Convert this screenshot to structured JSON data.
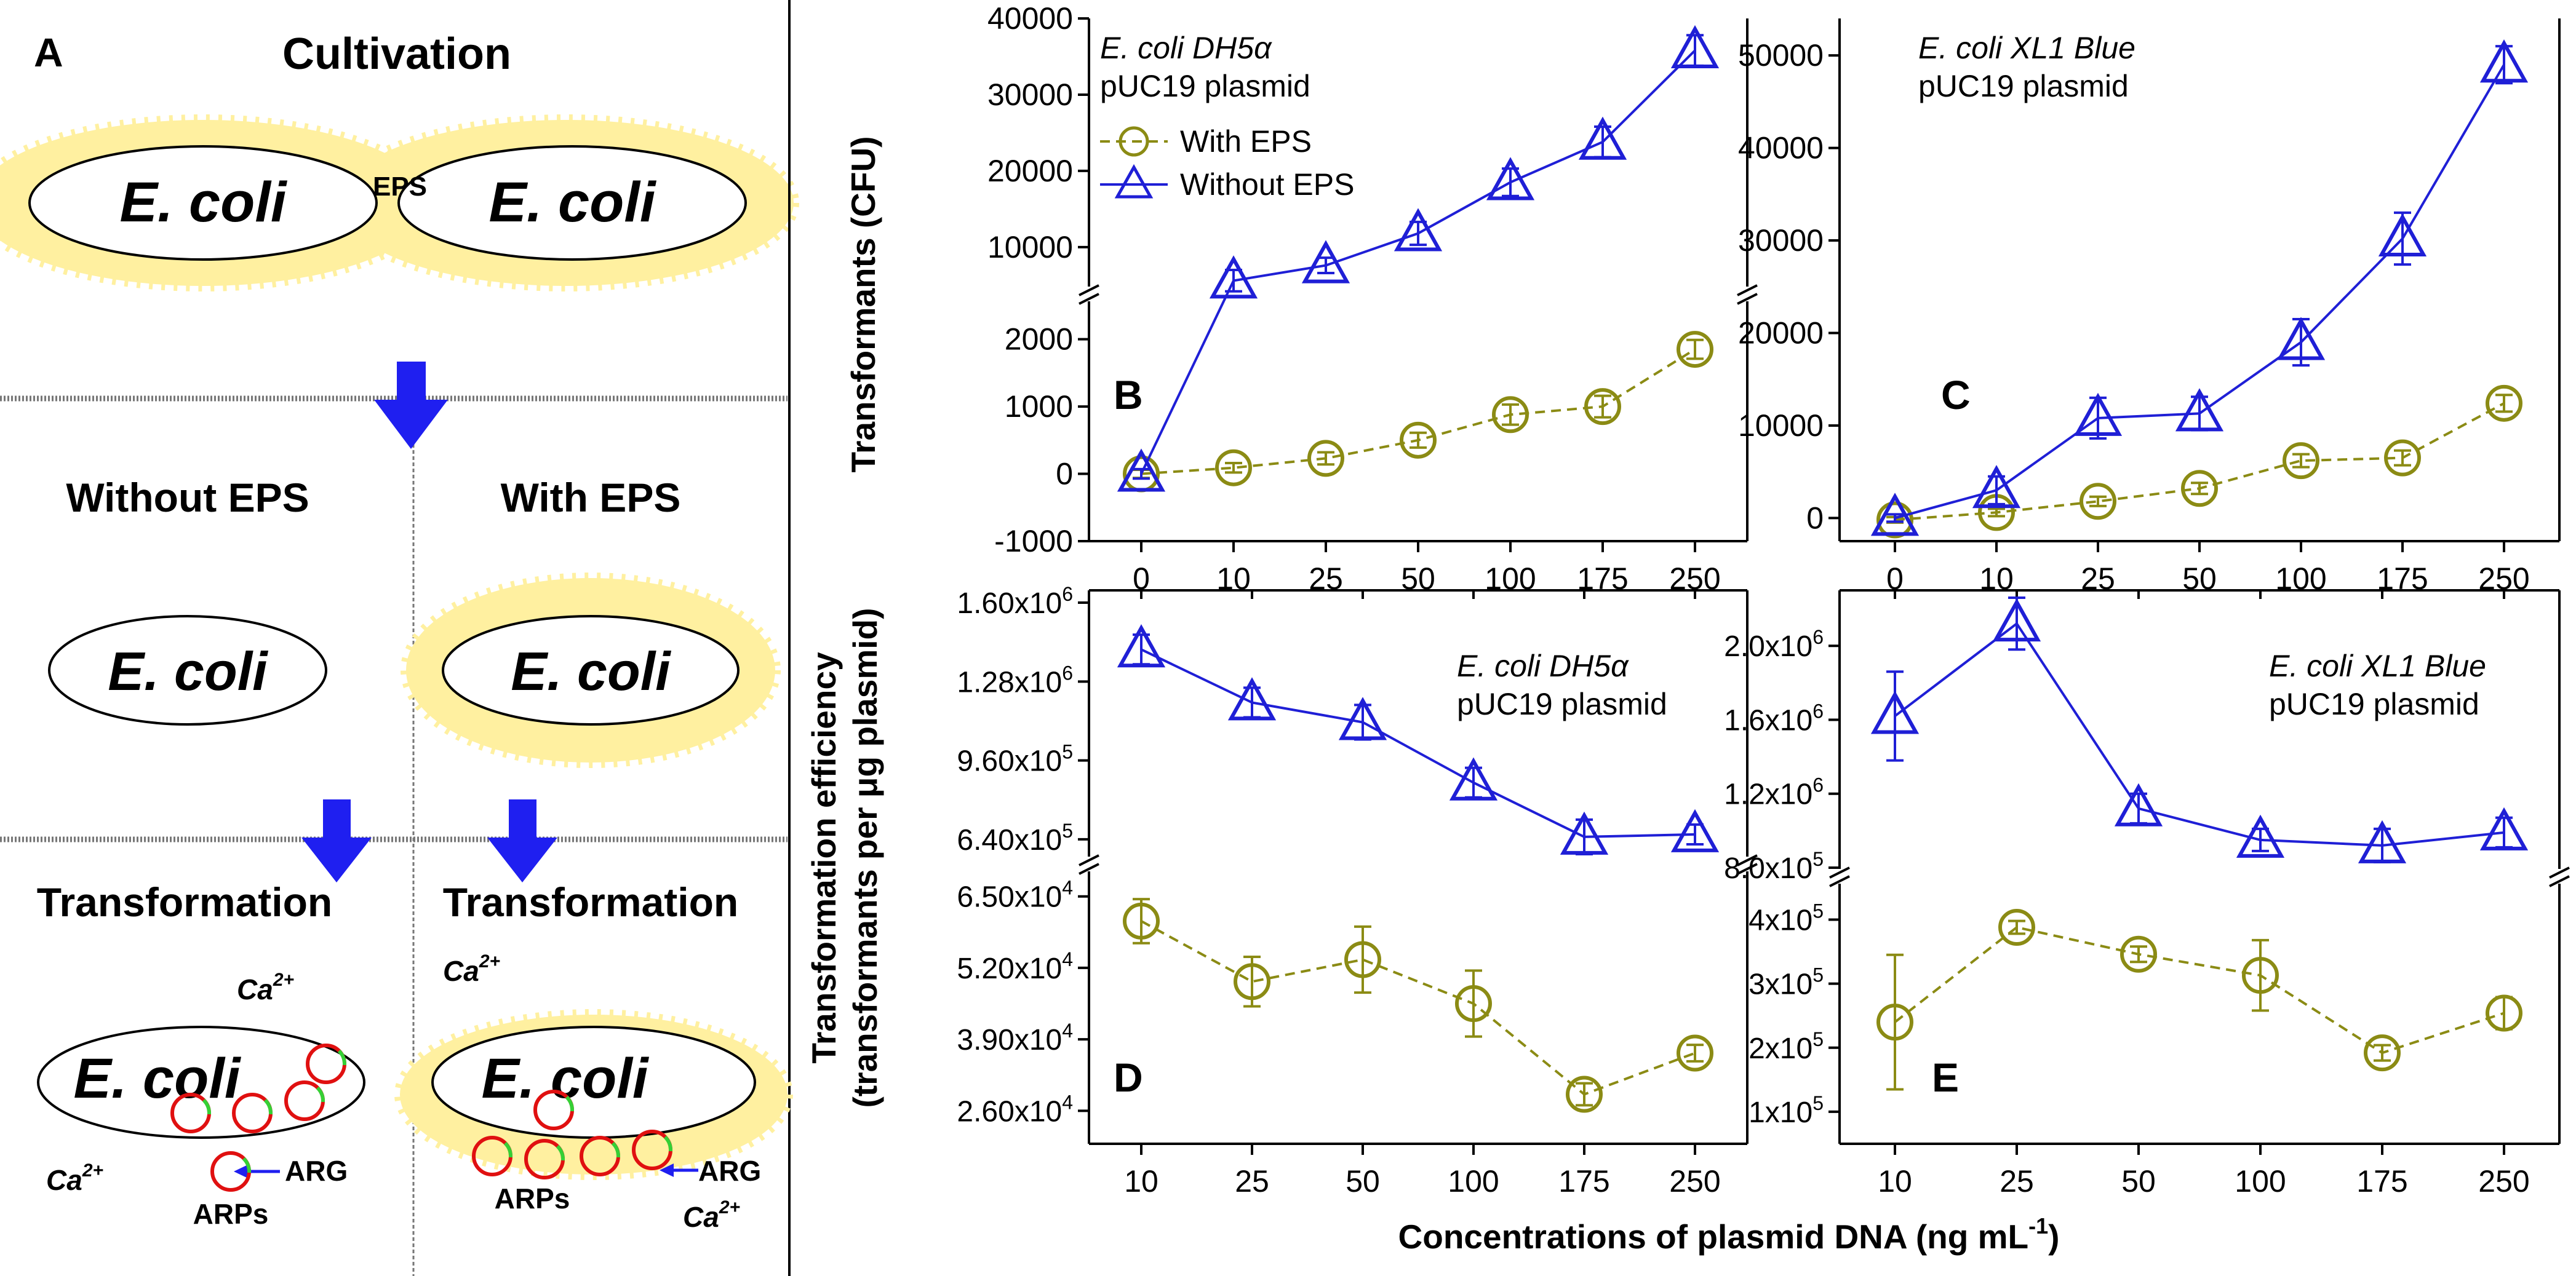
{
  "colors": {
    "with_eps": "#8B8B14",
    "without_eps": "#1F1FD6",
    "eps_glow": "#FFF0A0",
    "arrow": "#1F1FF0",
    "plasmid_ring": "#E01010",
    "plasmid_gene": "#35D035"
  },
  "schematic": {
    "panel_label": "A",
    "cultivation": "Cultivation",
    "ecoli": "E. coli",
    "eps": "EPS",
    "without_eps": "Without EPS",
    "with_eps": "With EPS",
    "transformation": "Transformation",
    "ca": "Ca",
    "ca_sup": "2+",
    "arg": "ARG",
    "arps": "ARPs"
  },
  "axes_text": {
    "y_top": "Transformants (CFU)",
    "y_bottom_1": "Transformation efficiency",
    "y_bottom_2": "(transformants per μg plasmid)",
    "x_common": "Concentrations of plasmid DNA (ng mL",
    "x_common_sup": "-1",
    "x_common_end": ")"
  },
  "chart_data": [
    {
      "panel": "B",
      "type": "line",
      "title": "E. coli DH5α",
      "subtitle": "pUC19 plasmid",
      "legend": [
        "With EPS",
        "Without EPS"
      ],
      "categories": [
        "0",
        "10",
        "25",
        "50",
        "100",
        "175",
        "250"
      ],
      "ylabel": "Transformants (CFU)",
      "ylim_lower": [
        -1000,
        2600
      ],
      "ylim_upper": [
        4500,
        40000
      ],
      "y_ticks_lower": [
        "-1000",
        "0",
        "1000",
        "2000"
      ],
      "y_ticks_upper": [
        "10000",
        "20000",
        "30000",
        "40000"
      ],
      "series": [
        {
          "name": "With EPS",
          "values": [
            0,
            90,
            230,
            500,
            880,
            1000,
            1850
          ],
          "errors": [
            60,
            70,
            90,
            110,
            150,
            160,
            140
          ]
        },
        {
          "name": "Without EPS",
          "values": [
            0,
            5600,
            7600,
            11800,
            18500,
            23800,
            35800
          ],
          "errors": [
            70,
            1400,
            1000,
            1500,
            1800,
            2000,
            2000
          ]
        }
      ]
    },
    {
      "panel": "C",
      "type": "line",
      "title": "E. coli XL1 Blue",
      "subtitle": "pUC19 plasmid",
      "categories": [
        "0",
        "10",
        "25",
        "50",
        "100",
        "175",
        "250"
      ],
      "ylim": [
        -2500,
        54000
      ],
      "y_ticks": [
        "0",
        "10000",
        "20000",
        "30000",
        "40000",
        "50000"
      ],
      "series": [
        {
          "name": "With EPS",
          "values": [
            -200,
            600,
            1800,
            3200,
            6200,
            6500,
            12400
          ],
          "errors": [
            300,
            400,
            500,
            600,
            700,
            800,
            900
          ]
        },
        {
          "name": "Without EPS",
          "values": [
            0,
            3000,
            10800,
            11300,
            19000,
            30200,
            49000
          ],
          "errors": [
            400,
            1500,
            2200,
            1800,
            2500,
            2800,
            2000
          ]
        }
      ]
    },
    {
      "panel": "D",
      "type": "line",
      "title": "E. coli DH5α",
      "subtitle": "pUC19 plasmid",
      "categories": [
        "10",
        "25",
        "50",
        "100",
        "175",
        "250"
      ],
      "ylabel": "Transformation efficiency (transformants per μg plasmid)",
      "ylim_lower": [
        20000,
        70000
      ],
      "ylim_upper": [
        560000,
        1650000
      ],
      "y_ticks_lower": [
        {
          "m": "2.60",
          "e": "4"
        },
        {
          "m": "3.90",
          "e": "4"
        },
        {
          "m": "5.20",
          "e": "4"
        },
        {
          "m": "6.50",
          "e": "4"
        }
      ],
      "y_ticks_upper": [
        {
          "m": "6.40",
          "e": "5"
        },
        {
          "m": "9.60",
          "e": "5"
        },
        {
          "m": "1.28",
          "e": "6"
        },
        {
          "m": "1.60",
          "e": "6"
        }
      ],
      "series": [
        {
          "name": "With EPS",
          "values": [
            60500,
            49500,
            53500,
            45500,
            29000,
            36500
          ],
          "errors": [
            4000,
            4500,
            6000,
            6000,
            2000,
            1500
          ]
        },
        {
          "name": "Without EPS",
          "values": [
            1410000,
            1195000,
            1115000,
            870000,
            650000,
            660000
          ],
          "errors": [
            60000,
            60000,
            70000,
            60000,
            70000,
            40000
          ]
        }
      ]
    },
    {
      "panel": "E",
      "type": "line",
      "title": "E. coli XL1 Blue",
      "subtitle": "pUC19 plasmid",
      "categories": [
        "10",
        "25",
        "50",
        "100",
        "175",
        "250"
      ],
      "ylim_lower": [
        50000,
        460000
      ],
      "ylim_upper": [
        780000,
        2300000
      ],
      "y_ticks_lower": [
        {
          "m": "1",
          "e": "5"
        },
        {
          "m": "2",
          "e": "5"
        },
        {
          "m": "3",
          "e": "5"
        },
        {
          "m": "4",
          "e": "5"
        }
      ],
      "y_ticks_upper": [
        {
          "m": "8.0",
          "e": "5"
        },
        {
          "m": "1.2",
          "e": "6"
        },
        {
          "m": "1.6",
          "e": "6"
        },
        {
          "m": "2.0",
          "e": "6"
        }
      ],
      "series": [
        {
          "name": "With EPS",
          "values": [
            240000,
            388000,
            346000,
            313000,
            192000,
            254000
          ],
          "errors": [
            105000,
            10000,
            12000,
            55000,
            12000,
            25000
          ]
        },
        {
          "name": "Without EPS",
          "values": [
            1620000,
            2120000,
            1120000,
            950000,
            920000,
            990000
          ],
          "errors": [
            240000,
            140000,
            80000,
            60000,
            90000,
            80000
          ]
        }
      ]
    }
  ]
}
